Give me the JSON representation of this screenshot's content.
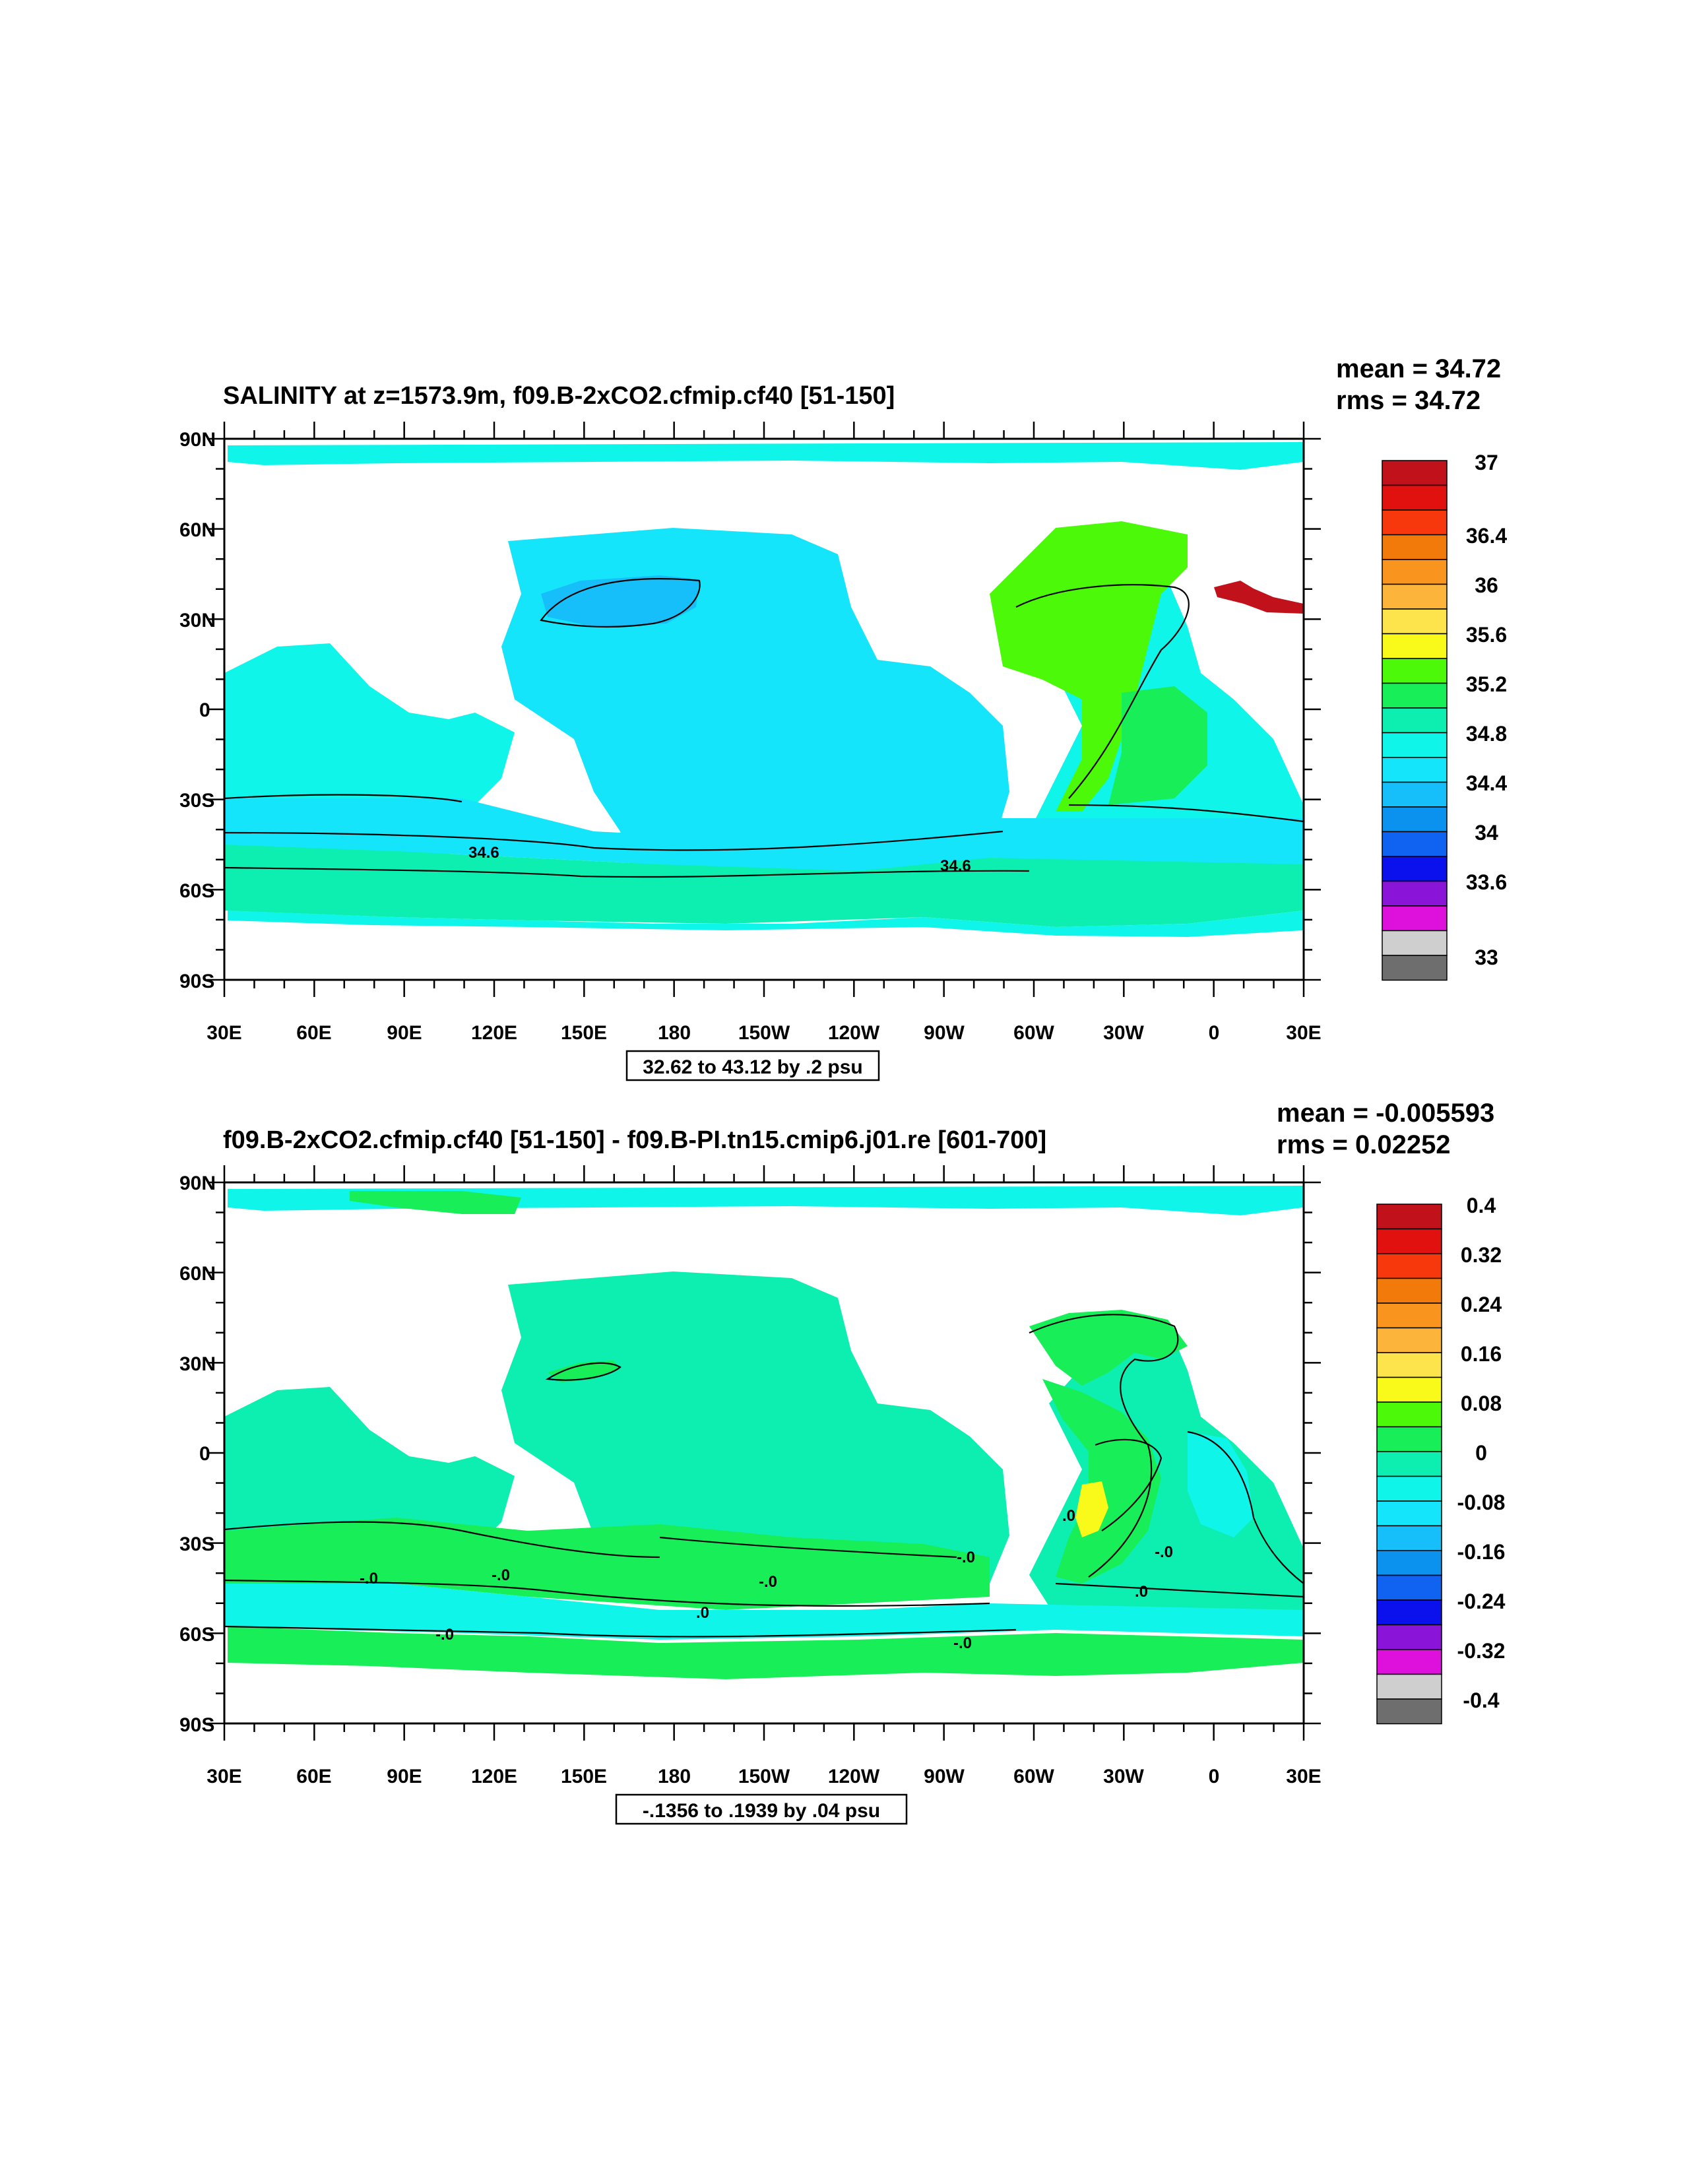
{
  "colors": {
    "land": "#ffffff",
    "frame": "#000000"
  },
  "panels": [
    {
      "id": "top",
      "title": "SALINITY at z=1573.9m, f09.B-2xCO2.cfmip.cf40 [51-150]",
      "mean_label": "mean = 34.72",
      "rms_label": "rms = 34.72",
      "range_label": "32.62 to 43.12 by .2 psu",
      "lat_ticks": [
        "90N",
        "60N",
        "30N",
        "0",
        "30S",
        "60S",
        "90S"
      ],
      "lon_ticks": [
        "30E",
        "60E",
        "90E",
        "120E",
        "150E",
        "180",
        "150W",
        "120W",
        "90W",
        "60W",
        "30W",
        "0",
        "30E"
      ],
      "colorbar": {
        "colors": [
          "#c1121b",
          "#e0110e",
          "#f6380c",
          "#f27a0a",
          "#f9951f",
          "#fcb43a",
          "#fde34c",
          "#f9f91a",
          "#4cf908",
          "#18ee58",
          "#0cefb1",
          "#10f5e9",
          "#14e5fb",
          "#16bff9",
          "#0b92ef",
          "#0f63f0",
          "#0b11ec",
          "#8a15d9",
          "#de11dc",
          "#cfcfcf",
          "#6e6e6e"
        ],
        "labels": [
          "37",
          "36.4",
          "36",
          "35.6",
          "35.2",
          "34.8",
          "34.4",
          "34",
          "33.6",
          "33"
        ]
      },
      "contour_labels": [
        "34.6",
        "34.6"
      ]
    },
    {
      "id": "bottom",
      "title": "f09.B-2xCO2.cfmip.cf40 [51-150] - f09.B-PI.tn15.cmip6.j01.re [601-700]",
      "mean_label": "mean = -0.005593",
      "rms_label": "rms = 0.02252",
      "range_label": "-.1356 to .1939 by .04 psu",
      "lat_ticks": [
        "90N",
        "60N",
        "30N",
        "0",
        "30S",
        "60S",
        "90S"
      ],
      "lon_ticks": [
        "30E",
        "60E",
        "90E",
        "120E",
        "150E",
        "180",
        "150W",
        "120W",
        "90W",
        "60W",
        "30W",
        "0",
        "30E"
      ],
      "colorbar": {
        "colors": [
          "#c1121b",
          "#e0110e",
          "#f6380c",
          "#f27a0a",
          "#f9951f",
          "#fcb43a",
          "#fde34c",
          "#f9f91a",
          "#4cf908",
          "#18ee58",
          "#0cefb1",
          "#10f5e9",
          "#14e5fb",
          "#16bff9",
          "#0b92ef",
          "#0f63f0",
          "#0b11ec",
          "#8a15d9",
          "#de11dc",
          "#cfcfcf",
          "#6e6e6e"
        ],
        "labels": [
          "0.4",
          "0.32",
          "0.24",
          "0.16",
          "0.08",
          "0",
          "-0.08",
          "-0.16",
          "-0.24",
          "-0.32",
          "-0.4"
        ]
      },
      "contour_labels": [
        "-.0",
        "-.0",
        "-.0",
        "-.0",
        "-.0",
        "-.0",
        "-.0",
        ".0",
        ".0",
        ".0"
      ]
    }
  ]
}
